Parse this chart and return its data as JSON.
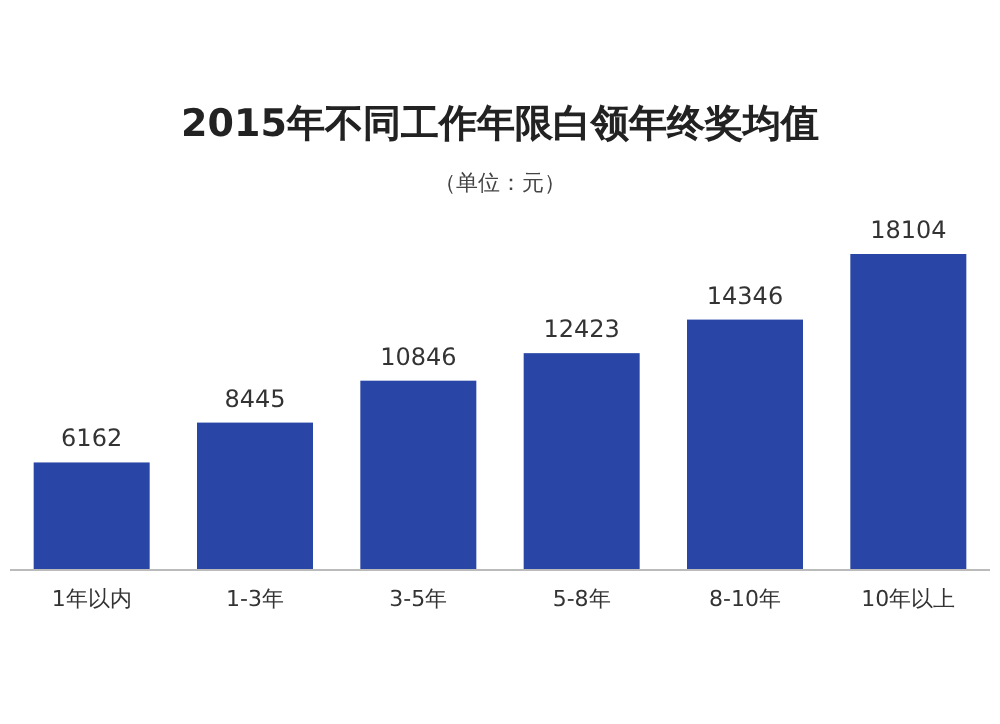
{
  "chart_data": {
    "type": "bar",
    "title": "2015年不同工作年限白领年终奖均值",
    "subtitle": "（单位：元）",
    "categories": [
      "1年以内",
      "1-3年",
      "3-5年",
      "5-8年",
      "8-10年",
      "10年以上"
    ],
    "values": [
      6162,
      8445,
      10846,
      12423,
      14346,
      18104
    ],
    "color": "#2946a6",
    "data_labels": true
  }
}
